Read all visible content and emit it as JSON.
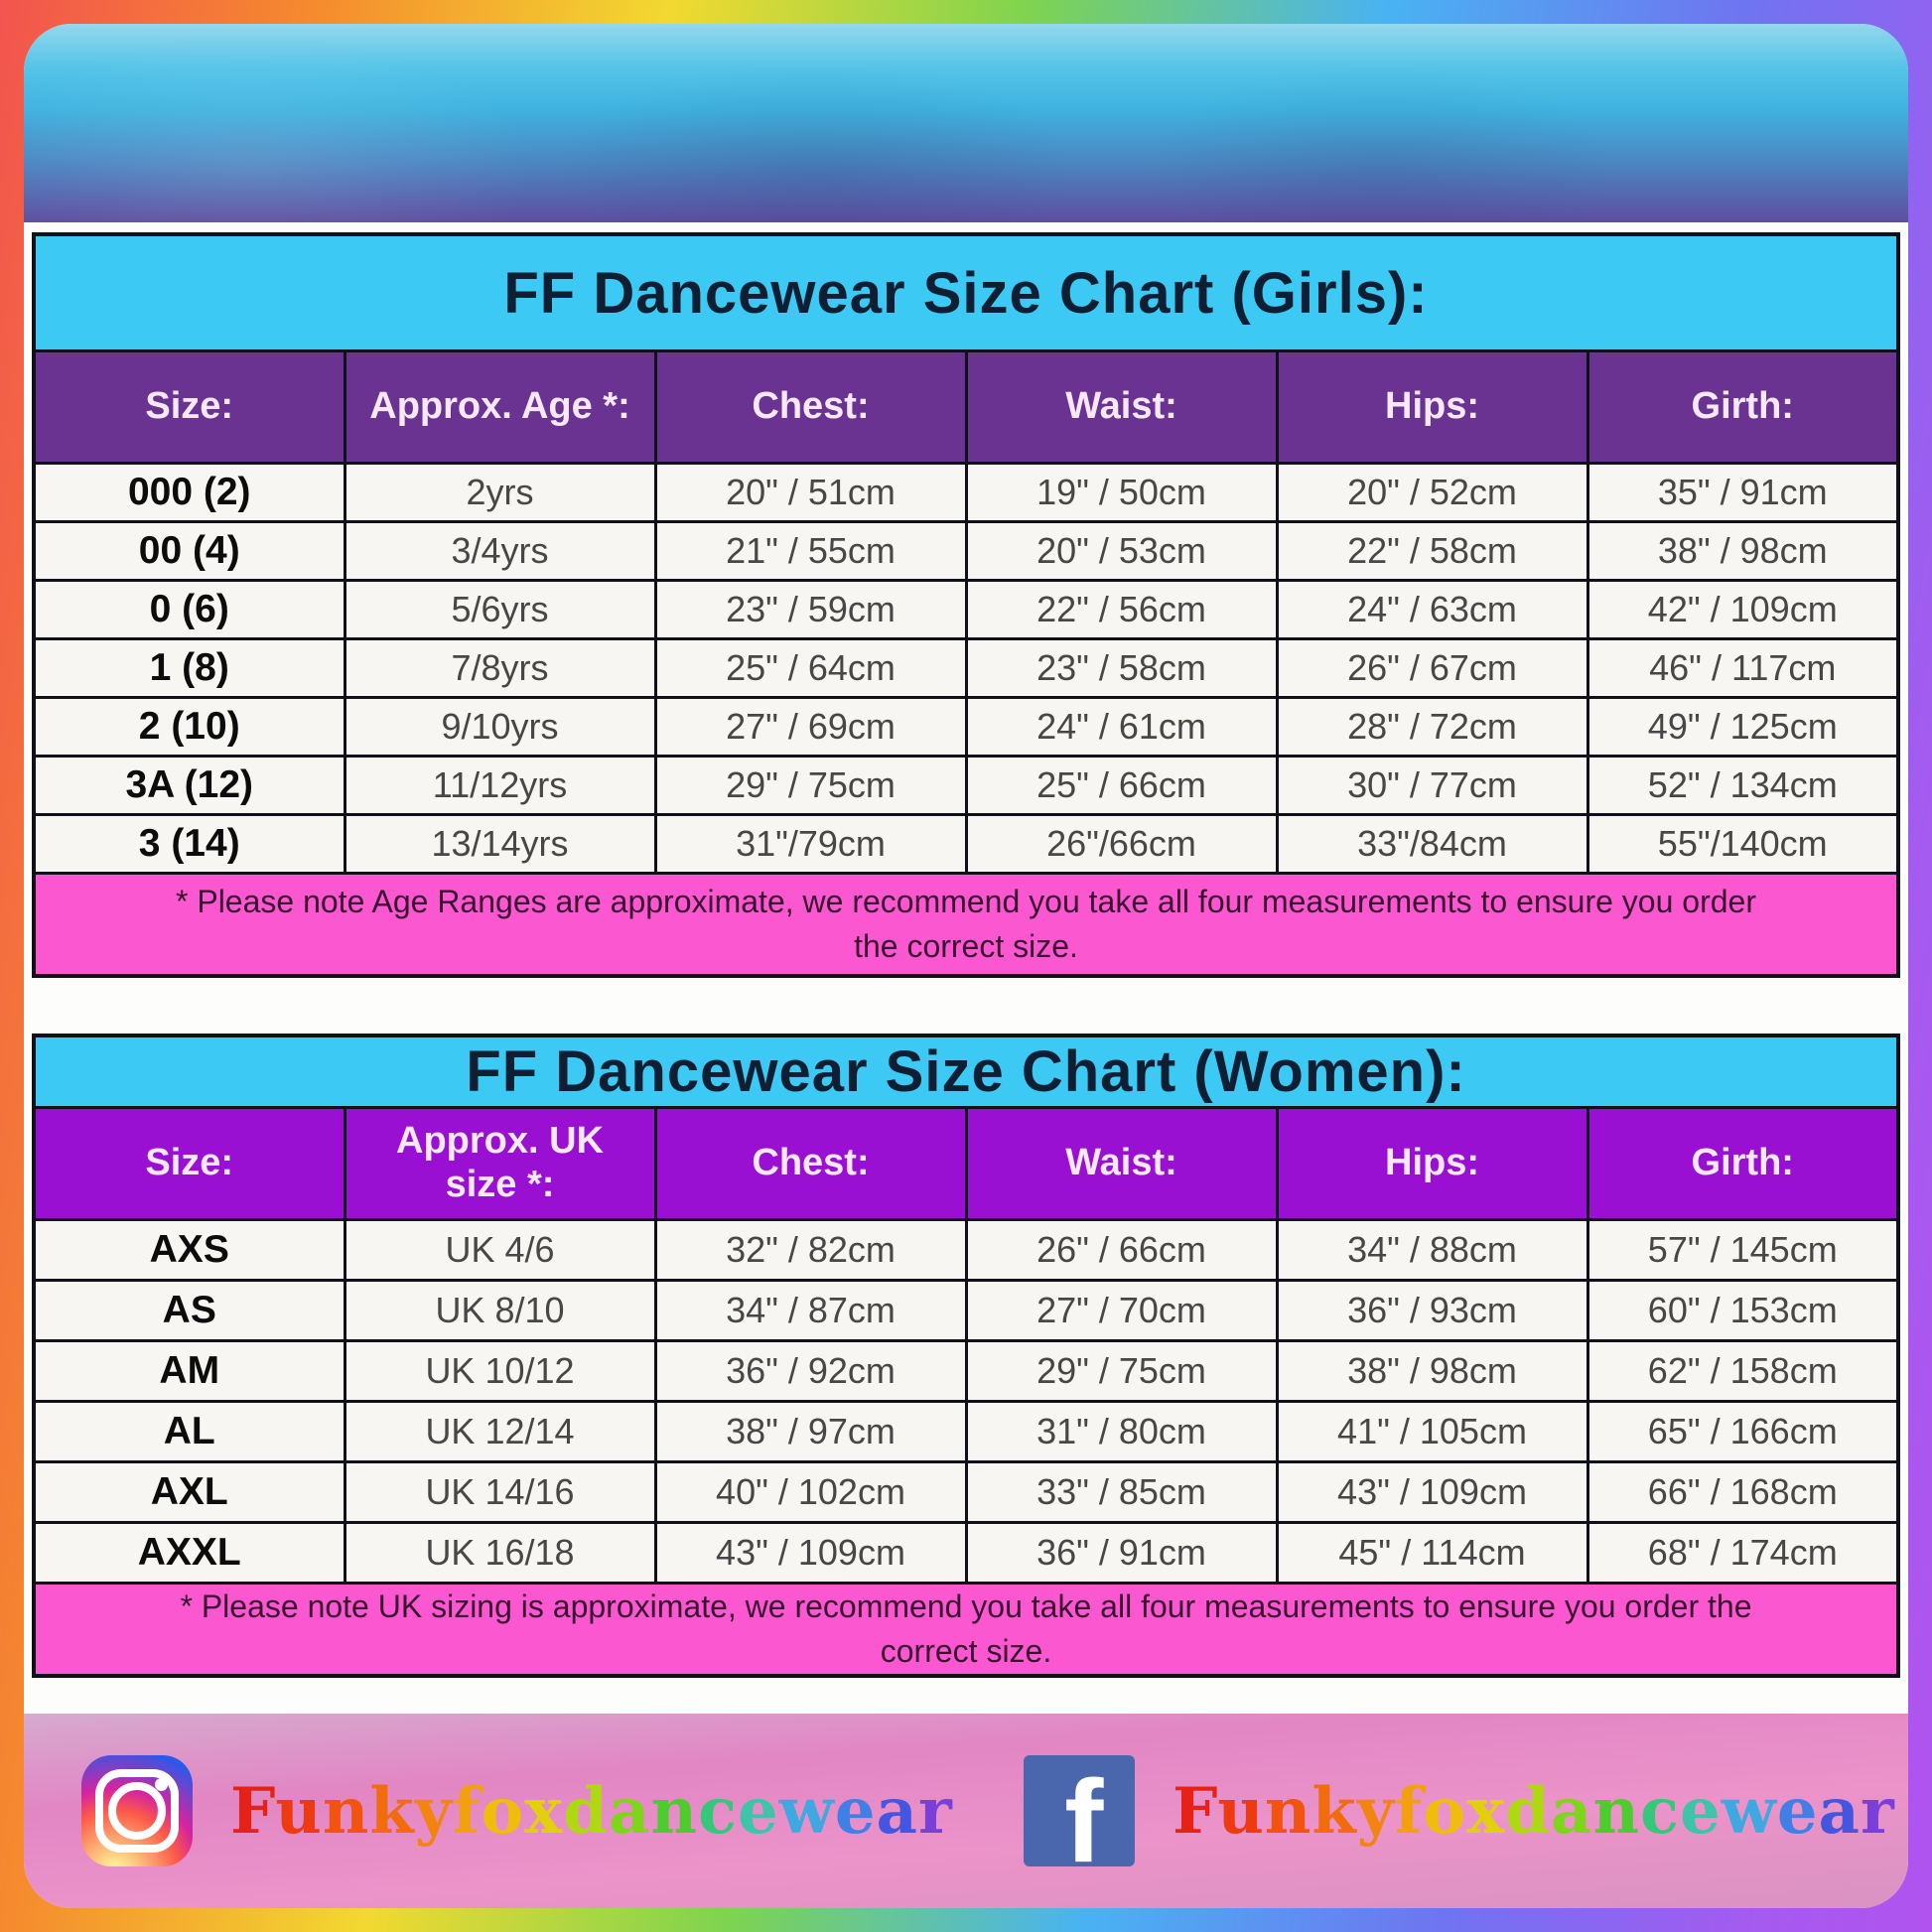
{
  "girls_table": {
    "title": "FF Dancewear Size Chart (Girls):",
    "headers": [
      "Size:",
      "Approx. Age *:",
      "Chest:",
      "Waist:",
      "Hips:",
      "Girth:"
    ],
    "rows": [
      [
        "000 (2)",
        "2yrs",
        "20\" / 51cm",
        "19\" / 50cm",
        "20\" / 52cm",
        "35\" / 91cm"
      ],
      [
        "00 (4)",
        "3/4yrs",
        "21\" / 55cm",
        "20\" / 53cm",
        "22\" / 58cm",
        "38\" / 98cm"
      ],
      [
        "0 (6)",
        "5/6yrs",
        "23\" / 59cm",
        "22\" / 56cm",
        "24\" / 63cm",
        "42\" / 109cm"
      ],
      [
        "1 (8)",
        "7/8yrs",
        "25\" / 64cm",
        "23\" / 58cm",
        "26\" / 67cm",
        "46\" / 117cm"
      ],
      [
        "2 (10)",
        "9/10yrs",
        "27\" / 69cm",
        "24\" / 61cm",
        "28\" / 72cm",
        "49\" / 125cm"
      ],
      [
        "3A (12)",
        "11/12yrs",
        "29\" / 75cm",
        "25\" / 66cm",
        "30\" / 77cm",
        "52\" / 134cm"
      ],
      [
        "3 (14)",
        "13/14yrs",
        "31\"/79cm",
        "26\"/66cm",
        "33\"/84cm",
        "55\"/140cm"
      ]
    ],
    "footnote": "* Please note Age Ranges are approximate, we recommend you take all four measurements to ensure you order the correct size."
  },
  "women_table": {
    "title": "FF Dancewear Size Chart (Women):",
    "headers": [
      "Size:",
      "Approx. UK size *:",
      "Chest:",
      "Waist:",
      "Hips:",
      "Girth:"
    ],
    "rows": [
      [
        "AXS",
        "UK 4/6",
        "32\" / 82cm",
        "26\" / 66cm",
        "34\" / 88cm",
        "57\" / 145cm"
      ],
      [
        "AS",
        "UK 8/10",
        "34\" / 87cm",
        "27\" / 70cm",
        "36\" / 93cm",
        "60\" / 153cm"
      ],
      [
        "AM",
        "UK 10/12",
        "36\" / 92cm",
        "29\" / 75cm",
        "38\" / 98cm",
        "62\" / 158cm"
      ],
      [
        "AL",
        "UK 12/14",
        "38\" / 97cm",
        "31\" / 80cm",
        "41\" / 105cm",
        "65\" / 166cm"
      ],
      [
        "AXL",
        "UK 14/16",
        "40\" / 102cm",
        "33\" / 85cm",
        "43\" / 109cm",
        "66\" / 168cm"
      ],
      [
        "AXXL",
        "UK 16/18",
        "43\" / 109cm",
        "36\" / 91cm",
        "45\" / 114cm",
        "68\" / 174cm"
      ]
    ],
    "footnote": "* Please note UK sizing is approximate, we recommend you take all four measurements to ensure you order the correct size."
  },
  "footer": {
    "instagram_handle": "Funkyfoxdancewear",
    "facebook_handle": "Funkyfoxdancewear",
    "facebook_icon_letter": "f"
  },
  "colors": {
    "title_bar_cyan": "#3cc9f4",
    "girls_header_purple": "#6a3392",
    "women_header_purple": "#9a10d2",
    "footnote_pink": "#fb57d0",
    "facebook_blue": "#4a66ad",
    "rainbow_letters": [
      "#e62117",
      "#ed3a10",
      "#f0540e",
      "#f06c0c",
      "#f28411",
      "#f2a00e",
      "#f0bd0c",
      "#e2d00e",
      "#b0d812",
      "#7fd41c",
      "#4ecb2e",
      "#35c87a",
      "#3ec4a8",
      "#3fa8e0",
      "#3f7fe6",
      "#4455e0",
      "#7a3fd8"
    ]
  }
}
